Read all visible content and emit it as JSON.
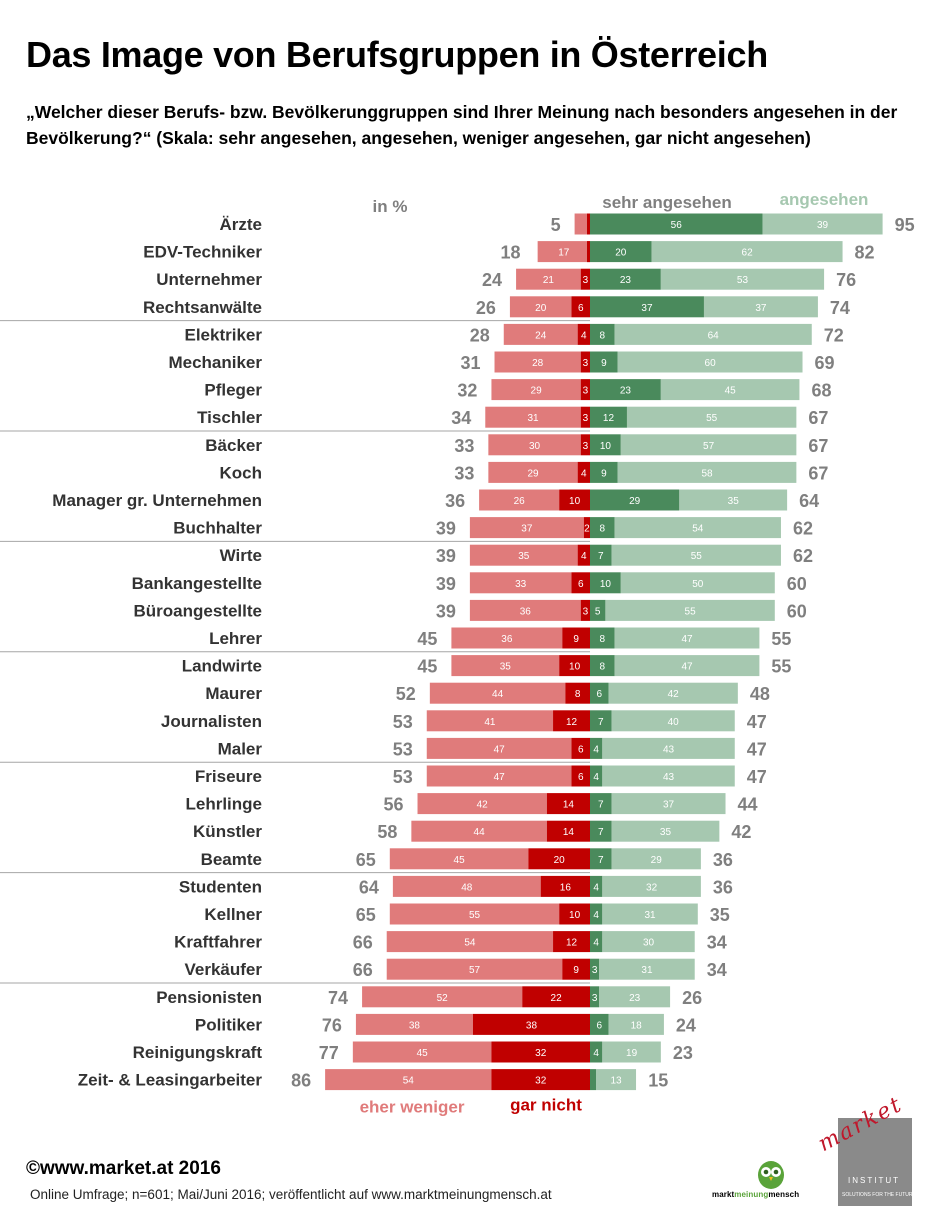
{
  "title": "Das Image von Berufsgruppen in Österreich",
  "subtitle": "„Welcher dieser Berufs- bzw. Bevölkerunggruppen sind Ihrer Meinung nach besonders angesehen in der Bevölkerung?“ (Skala: sehr angesehen, angesehen, weniger angesehen, gar nicht angesehen)",
  "colors": {
    "sehr_angesehen": "#4a8a5c",
    "angesehen": "#a6c8b0",
    "eher_weniger": "#e07b7b",
    "gar_nicht": "#c00000",
    "total_text": "#7f7f7f",
    "separator": "#a6a6a6"
  },
  "chart_data": {
    "type": "bar",
    "orientation": "horizontal-diverging",
    "unit_label": "in %",
    "legend": {
      "sehr_angesehen": "sehr angesehen",
      "angesehen": "angesehen",
      "eher_weniger": "eher weniger",
      "gar_nicht": "gar nicht"
    },
    "categories": [
      "Ärzte",
      "EDV-Techniker",
      "Unternehmer",
      "Rechtsanwälte",
      "Elektriker",
      "Mechaniker",
      "Pfleger",
      "Tischler",
      "Bäcker",
      "Koch",
      "Manager gr. Unternehmen",
      "Buchhalter",
      "Wirte",
      "Bankangestellte",
      "Büroangestellte",
      "Lehrer",
      "Landwirte",
      "Maurer",
      "Journalisten",
      "Maler",
      "Friseure",
      "Lehrlinge",
      "Künstler",
      "Beamte",
      "Studenten",
      "Kellner",
      "Kraftfahrer",
      "Verkäufer",
      "Pensionisten",
      "Politiker",
      "Reinigungskraft",
      "Zeit- & Leasingarbeiter"
    ],
    "series": [
      {
        "name": "sehr angesehen",
        "key": "sehr_angesehen",
        "values": [
          56,
          20,
          23,
          37,
          8,
          9,
          23,
          12,
          10,
          9,
          29,
          8,
          7,
          10,
          5,
          8,
          8,
          6,
          7,
          4,
          4,
          7,
          7,
          7,
          4,
          4,
          4,
          3,
          3,
          6,
          4,
          null
        ]
      },
      {
        "name": "angesehen",
        "key": "angesehen",
        "values": [
          39,
          62,
          53,
          37,
          64,
          60,
          45,
          55,
          57,
          58,
          35,
          54,
          55,
          50,
          55,
          47,
          47,
          42,
          40,
          43,
          43,
          37,
          35,
          29,
          32,
          31,
          30,
          31,
          23,
          18,
          19,
          13
        ]
      },
      {
        "name": "eher weniger",
        "key": "eher_weniger",
        "values": [
          null,
          17,
          21,
          20,
          24,
          28,
          29,
          31,
          30,
          29,
          26,
          37,
          35,
          33,
          36,
          36,
          35,
          44,
          41,
          47,
          47,
          42,
          44,
          45,
          48,
          55,
          54,
          57,
          52,
          38,
          45,
          54
        ]
      },
      {
        "name": "gar nicht",
        "key": "gar_nicht",
        "values": [
          null,
          null,
          3,
          6,
          4,
          3,
          3,
          3,
          3,
          4,
          10,
          2,
          4,
          6,
          3,
          9,
          10,
          8,
          12,
          6,
          6,
          14,
          14,
          20,
          16,
          10,
          12,
          9,
          22,
          38,
          32,
          32
        ]
      }
    ],
    "totals_positive": [
      95,
      82,
      76,
      74,
      72,
      69,
      68,
      67,
      67,
      67,
      64,
      62,
      62,
      60,
      60,
      55,
      55,
      48,
      47,
      47,
      47,
      44,
      42,
      36,
      36,
      35,
      34,
      34,
      26,
      24,
      23,
      15
    ],
    "totals_negative": [
      5,
      18,
      24,
      26,
      28,
      31,
      32,
      34,
      33,
      33,
      36,
      39,
      39,
      39,
      39,
      45,
      45,
      52,
      53,
      53,
      53,
      56,
      58,
      65,
      64,
      65,
      66,
      66,
      74,
      76,
      77,
      86
    ],
    "group_separators_after": [
      3,
      7,
      11,
      15,
      19,
      23,
      27
    ],
    "xlim": [
      -86,
      95
    ]
  },
  "footer": {
    "copyright": "©www.market.at 2016",
    "note": "Online Umfrage; n=601; Mai/Juni 2016; veröffentlicht auf www.marktmeinungmensch.at"
  },
  "logos": {
    "owl_word_1": "markt",
    "owl_word_2": "meinung",
    "owl_word_3": "mensch",
    "market_word": "market",
    "market_institut": "INSTITUT",
    "market_tagline": "SOLUTIONS FOR THE FUTURE"
  }
}
